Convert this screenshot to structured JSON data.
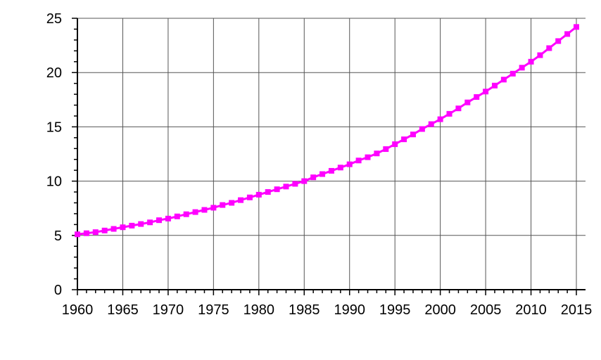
{
  "chart_data": {
    "type": "line",
    "title": "",
    "xlabel": "",
    "ylabel": "",
    "xlim": [
      1960,
      2015
    ],
    "ylim": [
      0,
      25
    ],
    "grid": true,
    "legend": "none",
    "x_ticks": [
      "1960",
      "1965",
      "1970",
      "1975",
      "1980",
      "1985",
      "1990",
      "1995",
      "2000",
      "2005",
      "2010",
      "2015"
    ],
    "y_ticks": [
      "0",
      "5",
      "10",
      "15",
      "20",
      "25"
    ],
    "series": [
      {
        "color": "#ff00ff",
        "marker": "square",
        "x": [
          1960,
          1961,
          1962,
          1963,
          1964,
          1965,
          1966,
          1967,
          1968,
          1969,
          1970,
          1971,
          1972,
          1973,
          1974,
          1975,
          1976,
          1977,
          1978,
          1979,
          1980,
          1981,
          1982,
          1983,
          1984,
          1985,
          1986,
          1987,
          1988,
          1989,
          1990,
          1991,
          1992,
          1993,
          1994,
          1995,
          1996,
          1997,
          1998,
          1999,
          2000,
          2001,
          2002,
          2003,
          2004,
          2005,
          2006,
          2007,
          2008,
          2009,
          2010,
          2011,
          2012,
          2013,
          2014,
          2015
        ],
        "values": [
          5.1,
          5.2,
          5.3,
          5.45,
          5.6,
          5.75,
          5.9,
          6.05,
          6.2,
          6.4,
          6.55,
          6.75,
          6.95,
          7.15,
          7.35,
          7.55,
          7.8,
          8.0,
          8.25,
          8.5,
          8.75,
          9.0,
          9.25,
          9.5,
          9.75,
          10.0,
          10.35,
          10.65,
          10.95,
          11.25,
          11.55,
          11.9,
          12.2,
          12.55,
          12.95,
          13.4,
          13.85,
          14.3,
          14.8,
          15.25,
          15.7,
          16.2,
          16.7,
          17.25,
          17.75,
          18.25,
          18.8,
          19.35,
          19.9,
          20.45,
          21.0,
          21.6,
          22.25,
          22.9,
          23.55,
          24.2
        ]
      }
    ]
  }
}
